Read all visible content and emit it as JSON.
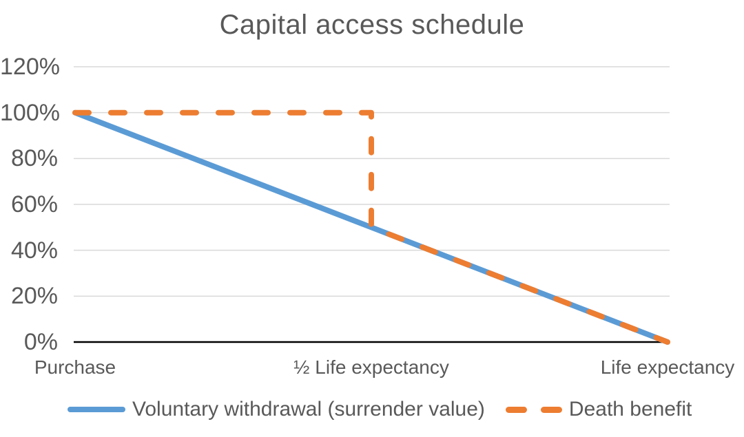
{
  "chart_data": {
    "type": "line",
    "title": "Capital access schedule",
    "xlabel": "",
    "ylabel": "",
    "x_labels": [
      "Purchase",
      "½ Life expectancy",
      "Life expectancy"
    ],
    "x_label_positions": [
      0,
      0.5,
      1
    ],
    "ylim": [
      0,
      120
    ],
    "yticks": [
      0,
      20,
      40,
      60,
      80,
      100,
      120
    ],
    "ytick_labels": [
      "0%",
      "20%",
      "40%",
      "60%",
      "80%",
      "100%",
      "120%"
    ],
    "grid": "horizontal",
    "legend_position": "bottom",
    "series": [
      {
        "name": "Voluntary withdrawal (surrender value)",
        "color": "#5B9BD5",
        "style": "solid",
        "points": [
          {
            "x": 0,
            "y": 100
          },
          {
            "x": 0.5,
            "y": 50
          },
          {
            "x": 1,
            "y": 0
          }
        ]
      },
      {
        "name": "Death benefit",
        "color": "#ED7D31",
        "style": "dashed",
        "points": [
          {
            "x": 0,
            "y": 100
          },
          {
            "x": 0.5,
            "y": 100
          },
          {
            "x": 0.5,
            "y": 50
          },
          {
            "x": 1,
            "y": 0
          }
        ]
      }
    ],
    "colors": {
      "grid": "#D9D9D9",
      "axis": "#000000",
      "text": "#595959"
    }
  }
}
